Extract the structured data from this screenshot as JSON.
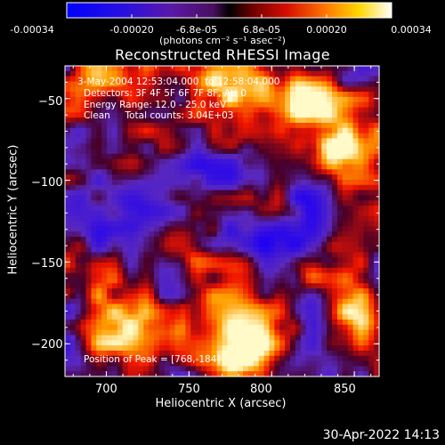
{
  "colorbar": {
    "ticks": [
      "-0.00034",
      "-0.00020",
      "-6.8e-05",
      "6.8e-05",
      "0.00020",
      "0.00034"
    ],
    "unit_label": "(photons cm⁻² s⁻¹ asec⁻²)",
    "range": [
      -0.00034,
      0.00034
    ]
  },
  "chart_data": {
    "type": "heatmap",
    "title": "Reconstructed RHESSI Image",
    "xlabel": "Heliocentric X (arcsec)",
    "ylabel": "Heliocentric Y (arcsec)",
    "xlim": [
      675,
      865
    ],
    "ylim": [
      -220,
      -30
    ],
    "x_ticks": [
      {
        "value": 700,
        "label": "700"
      },
      {
        "value": 750,
        "label": "750"
      },
      {
        "value": 800,
        "label": "800"
      },
      {
        "value": 850,
        "label": "850"
      }
    ],
    "y_ticks": [
      {
        "value": -50,
        "label": "−50"
      },
      {
        "value": -100,
        "label": "−100"
      },
      {
        "value": -150,
        "label": "−150"
      },
      {
        "value": -200,
        "label": "−200"
      }
    ],
    "peak_position": [
      768,
      -184
    ],
    "annotations": [
      "3-May-2004 12:53:04.000  to 12:58:04.000",
      "Detectors: 3F 4F 5F 6F 7F 8F, Att 0",
      "Energy Range: 12.0 - 25.0 keV",
      "Clean     Total counts: 3.04E+03",
      "Position of Peak = [768,-184]"
    ]
  },
  "footer_timestamp": "30-Apr-2022 14:13"
}
